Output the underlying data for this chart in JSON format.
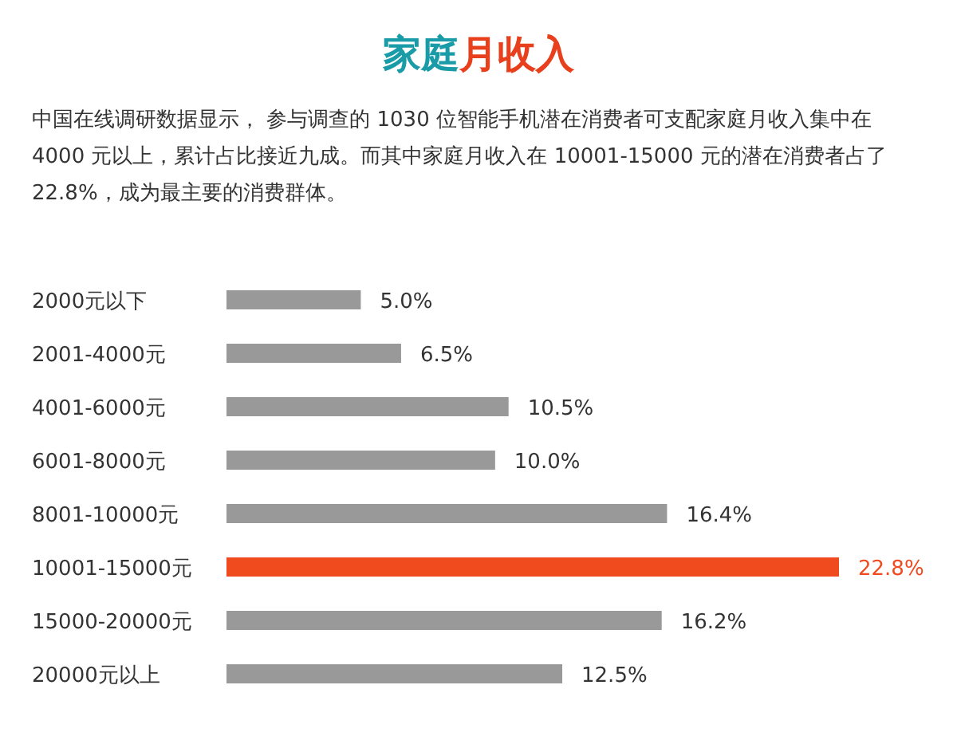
{
  "chart_data": {
    "type": "bar",
    "orientation": "horizontal",
    "title": "家庭月收入",
    "subtitle": "中国在线调研数据显示， 参与调查的 1030 位智能手机潜在消费者可支配家庭月收入集中在 4000 元以上，累计占比接近九成。而其中家庭月收入在 10001-15000 元的潜在消费者占了 22.8%，成为最主要的消费群体。",
    "categories": [
      "2000元以下",
      "2001-4000元",
      "4001-6000元",
      "6001-8000元",
      "8001-10000元",
      "10001-15000元",
      "15000-20000元",
      "20000元以上"
    ],
    "values": [
      5.0,
      6.5,
      10.5,
      10.0,
      16.4,
      22.8,
      16.2,
      12.5
    ],
    "value_labels": [
      "5.0%",
      "6.5%",
      "10.5%",
      "10.0%",
      "16.4%",
      "22.8%",
      "16.2%",
      "12.5%"
    ],
    "colors": [
      "#999999",
      "#999999",
      "#999999",
      "#999999",
      "#999999",
      "#f04a1f",
      "#999999",
      "#999999"
    ]
  }
}
